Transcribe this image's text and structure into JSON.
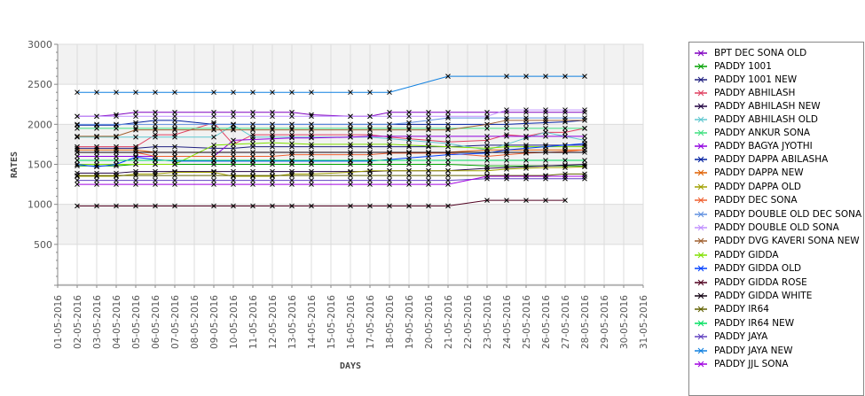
{
  "chart_data": {
    "type": "line",
    "title": "",
    "xlabel": "DAYS",
    "ylabel": "RATES",
    "ylim": [
      0,
      3000
    ],
    "yticks": [
      500,
      1000,
      1500,
      2000,
      2500,
      3000
    ],
    "xtick_labels": [
      "01-05-2016",
      "02-05-2016",
      "03-05-2016",
      "04-05-2016",
      "05-05-2016",
      "06-05-2016",
      "07-05-2016",
      "08-05-2016",
      "09-05-2016",
      "10-05-2016",
      "11-05-2016",
      "12-05-2016",
      "13-05-2016",
      "14-05-2016",
      "15-05-2016",
      "16-05-2016",
      "17-05-2016",
      "18-05-2016",
      "19-05-2016",
      "20-05-2016",
      "21-05-2016",
      "22-05-2016",
      "23-05-2016",
      "24-05-2016",
      "25-05-2016",
      "26-05-2016",
      "27-05-2016",
      "28-05-2016",
      "29-05-2016",
      "30-05-2016",
      "31-05-2016"
    ],
    "x": [
      "02-05-2016",
      "03-05-2016",
      "04-05-2016",
      "05-05-2016",
      "06-05-2016",
      "07-05-2016",
      "09-05-2016",
      "10-05-2016",
      "11-05-2016",
      "12-05-2016",
      "13-05-2016",
      "14-05-2016",
      "16-05-2016",
      "17-05-2016",
      "18-05-2016",
      "19-05-2016",
      "20-05-2016",
      "21-05-2016",
      "23-05-2016",
      "24-05-2016",
      "25-05-2016",
      "26-05-2016",
      "27-05-2016",
      "28-05-2016"
    ],
    "grid": true,
    "legend_position": "right",
    "series": [
      {
        "name": "BPT DEC SONA OLD",
        "color": "#8000c0",
        "values": [
          2100,
          2100,
          2120,
          2150,
          2150,
          2150,
          2150,
          2150,
          2150,
          2150,
          2150,
          2120,
          2100,
          2100,
          2150,
          2150,
          2150,
          2150,
          2150,
          2150,
          2150,
          2150,
          2150,
          2150
        ]
      },
      {
        "name": "PADDY 1001",
        "color": "#00a000",
        "values": [
          1480,
          1480,
          1480,
          1500,
          1500,
          1500,
          1500,
          1500,
          1500,
          1500,
          1500,
          1500,
          1500,
          1500,
          1500,
          1500,
          1500,
          1500,
          1480,
          1480,
          1480,
          1480,
          1480,
          1480
        ]
      },
      {
        "name": "PADDY 1001 NEW",
        "color": "#202080",
        "values": [
          1700,
          1700,
          1700,
          1700,
          1720,
          1720,
          1700,
          1700,
          1720,
          1720,
          1720,
          1720,
          1720,
          1720,
          1720,
          1720,
          1720,
          1720,
          1740,
          1740,
          1740,
          1740,
          1740,
          1740
        ]
      },
      {
        "name": "PADDY ABHILASH",
        "color": "#e04060",
        "values": [
          1720,
          1720,
          1720,
          1720,
          1870,
          1870,
          2020,
          1750,
          1870,
          1870,
          1870,
          1870,
          1870,
          1870,
          1840,
          1820,
          1800,
          1780,
          1800,
          1870,
          1850,
          1900,
          1900,
          1950
        ]
      },
      {
        "name": "PADDY ABHILASH NEW",
        "color": "#200040",
        "values": [
          1390,
          1390,
          1390,
          1410,
          1410,
          1410,
          1410,
          1410,
          1410,
          1410,
          1410,
          1410,
          1410,
          1410,
          1420,
          1420,
          1420,
          1420,
          1450,
          1460,
          1470,
          1480,
          1490,
          1500
        ]
      },
      {
        "name": "PADDY ABHILASH OLD",
        "color": "#60c8d0",
        "values": [
          1840,
          1840,
          1840,
          1840,
          1840,
          1840,
          1840,
          1990,
          1840,
          1840,
          1840,
          1840,
          1840,
          1840,
          1820,
          1800,
          1780,
          1760,
          1680,
          1750,
          1830,
          1900,
          1850,
          1800
        ]
      },
      {
        "name": "PADDY ANKUR SONA",
        "color": "#40e080",
        "values": [
          1950,
          1950,
          1950,
          1950,
          1950,
          1950,
          1950,
          1950,
          1950,
          1950,
          1950,
          1950,
          1950,
          1950,
          1950,
          1950,
          1950,
          1950,
          1950,
          1950,
          1950,
          1950,
          1950,
          1950
        ]
      },
      {
        "name": "PADDY BAGYA JYOTHI",
        "color": "#9000e0",
        "values": [
          1600,
          1600,
          1600,
          1600,
          1600,
          1600,
          1600,
          1800,
          1810,
          1820,
          1830,
          1830,
          1840,
          1850,
          1850,
          1850,
          1850,
          1850,
          1850,
          1850,
          1850,
          1850,
          1850,
          1850
        ]
      },
      {
        "name": "PADDY DAPPA ABILASHA",
        "color": "#0020a0",
        "values": [
          1990,
          1990,
          1990,
          2020,
          2050,
          2050,
          2000,
          2000,
          2000,
          2000,
          2000,
          2000,
          2000,
          2000,
          2000,
          2000,
          2000,
          2000,
          2000,
          2000,
          2010,
          2020,
          2030,
          2050
        ]
      },
      {
        "name": "PADDY DAPPA NEW",
        "color": "#e06000",
        "values": [
          1680,
          1680,
          1680,
          1680,
          1650,
          1650,
          1650,
          1650,
          1650,
          1650,
          1650,
          1650,
          1650,
          1650,
          1650,
          1650,
          1650,
          1650,
          1680,
          1680,
          1680,
          1680,
          1680,
          1680
        ]
      },
      {
        "name": "PADDY DAPPA OLD",
        "color": "#a0a000",
        "values": [
          1350,
          1350,
          1350,
          1380,
          1380,
          1400,
          1400,
          1350,
          1350,
          1350,
          1380,
          1380,
          1400,
          1420,
          1420,
          1420,
          1420,
          1420,
          1420,
          1440,
          1450,
          1460,
          1460,
          1470
        ]
      },
      {
        "name": "PADDY DEC SONA",
        "color": "#f06030",
        "values": [
          1650,
          1650,
          1650,
          1650,
          1600,
          1600,
          1600,
          1600,
          1600,
          1600,
          1620,
          1620,
          1620,
          1620,
          1640,
          1640,
          1640,
          1640,
          1600,
          1620,
          1640,
          1650,
          1660,
          1680
        ]
      },
      {
        "name": "PADDY DOUBLE OLD DEC SONA",
        "color": "#6090e0",
        "values": [
          2000,
          2000,
          2000,
          2000,
          2000,
          2000,
          2000,
          2000,
          2000,
          2000,
          2000,
          2000,
          2000,
          2000,
          2000,
          2020,
          2050,
          2080,
          2080,
          2080,
          2080,
          2080,
          2080,
          2080
        ]
      },
      {
        "name": "PADDY DOUBLE OLD SONA",
        "color": "#c090ff",
        "values": [
          2100,
          2100,
          2100,
          2100,
          2100,
          2100,
          2100,
          2100,
          2100,
          2100,
          2100,
          2100,
          2100,
          2100,
          2100,
          2100,
          2100,
          2100,
          2100,
          2180,
          2180,
          2180,
          2180,
          2180
        ]
      },
      {
        "name": "PADDY DVG KAVERI SONA NEW",
        "color": "#a06030",
        "values": [
          1850,
          1850,
          1850,
          1930,
          1930,
          1930,
          1930,
          1930,
          1930,
          1930,
          1930,
          1930,
          1930,
          1930,
          1930,
          1930,
          1930,
          1930,
          2000,
          2050,
          2050,
          2050,
          2050,
          2050
        ]
      },
      {
        "name": "PADDY GIDDA",
        "color": "#80e000",
        "values": [
          1500,
          1500,
          1500,
          1500,
          1500,
          1500,
          1740,
          1750,
          1760,
          1770,
          1760,
          1750,
          1750,
          1750,
          1750,
          1740,
          1730,
          1720,
          1700,
          1720,
          1720,
          1720,
          1720,
          1720
        ]
      },
      {
        "name": "PADDY GIDDA OLD",
        "color": "#0040ff",
        "values": [
          1500,
          1470,
          1500,
          1590,
          1560,
          1540,
          1540,
          1540,
          1540,
          1540,
          1540,
          1540,
          1540,
          1540,
          1560,
          1580,
          1600,
          1620,
          1640,
          1680,
          1700,
          1720,
          1740,
          1760
        ]
      },
      {
        "name": "PADDY GIDDA ROSE",
        "color": "#500020",
        "values": [
          980,
          980,
          980,
          980,
          980,
          980,
          980,
          980,
          980,
          980,
          980,
          980,
          980,
          980,
          980,
          980,
          980,
          980,
          1050,
          1050,
          1050,
          1050,
          1050,
          null
        ]
      },
      {
        "name": "PADDY GIDDA WHITE",
        "color": "#100010",
        "values": [
          1650,
          1650,
          1650,
          1650,
          1650,
          1650,
          1650,
          1650,
          1650,
          1650,
          1650,
          1650,
          1650,
          1650,
          1650,
          1650,
          1650,
          1650,
          1650,
          1650,
          1650,
          1650,
          1650,
          1650
        ]
      },
      {
        "name": "PADDY IR64",
        "color": "#606000",
        "values": [
          1360,
          1360,
          1360,
          1360,
          1360,
          1360,
          1360,
          1360,
          1360,
          1360,
          1360,
          1360,
          1360,
          1360,
          1360,
          1360,
          1360,
          1360,
          1360,
          1360,
          1360,
          1360,
          1380,
          1380
        ]
      },
      {
        "name": "PADDY IR64 NEW",
        "color": "#00e060",
        "values": [
          1550,
          1550,
          1550,
          1550,
          1550,
          1550,
          1550,
          1550,
          1550,
          1550,
          1550,
          1550,
          1550,
          1550,
          1550,
          1550,
          1550,
          1550,
          1550,
          1550,
          1550,
          1550,
          1550,
          1550
        ]
      },
      {
        "name": "PADDY JAYA",
        "color": "#6040c0",
        "values": [
          1300,
          1300,
          1300,
          1300,
          1300,
          1300,
          1300,
          1300,
          1300,
          1300,
          1300,
          1300,
          1300,
          1300,
          1300,
          1300,
          1300,
          1300,
          1320,
          1320,
          1320,
          1320,
          1320,
          1320
        ]
      },
      {
        "name": "PADDY JAYA NEW",
        "color": "#1080e0",
        "values": [
          2400,
          2400,
          2400,
          2400,
          2400,
          2400,
          2400,
          2400,
          2400,
          2400,
          2400,
          2400,
          2400,
          2400,
          2400,
          null,
          null,
          2600,
          null,
          2600,
          2600,
          2600,
          2600,
          2600
        ]
      },
      {
        "name": "PADDY JJL SONA",
        "color": "#a000e0",
        "values": [
          1250,
          1250,
          1250,
          1250,
          1250,
          1250,
          1250,
          1250,
          1250,
          1250,
          1250,
          1250,
          1250,
          1250,
          1250,
          1250,
          1250,
          1250,
          1350,
          1350,
          1350,
          1350,
          1350,
          1350
        ]
      }
    ]
  }
}
